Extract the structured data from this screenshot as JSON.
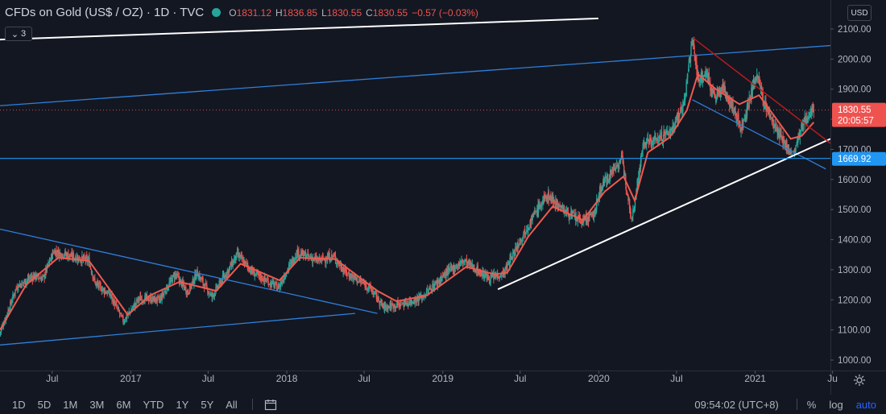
{
  "legend": {
    "title": "CFDs on Gold (US$ / OZ) · 1D · TVC",
    "o_label": "O",
    "o": "1831.12",
    "h_label": "H",
    "h": "1836.85",
    "l_label": "L",
    "l": "1830.55",
    "c_label": "C",
    "c": "1830.55",
    "change": "−0.57 (−0.03%)"
  },
  "collapse": {
    "count": "3"
  },
  "currency": "USD",
  "timeframes": [
    "1D",
    "5D",
    "1M",
    "3M",
    "6M",
    "YTD",
    "1Y",
    "5Y",
    "All"
  ],
  "clock": "09:54:02 (UTC+8)",
  "toggles": {
    "percent": "%",
    "log": "log",
    "auto": "auto"
  },
  "price_badge": {
    "price": "1830.55",
    "countdown": "20:05:57"
  },
  "level_badge": "1669.92",
  "colors": {
    "background": "#131722",
    "up": "#26a69a",
    "down": "#ef5350",
    "ma": "#f05a4f",
    "trendline_blue": "#2f7fd8",
    "trendline_white": "#ffffff",
    "trendline_red": "#b71c1c",
    "level_badge": "#2196f3"
  },
  "chart_data": {
    "type": "candlestick",
    "symbol": "CFDs on Gold (US$ / OZ)",
    "interval": "1D",
    "y_range": [
      960,
      2130
    ],
    "x_start": "2016-03-01",
    "x_end": "2021-06-26",
    "y_ticks": [
      "1000.00",
      "1100.00",
      "1200.00",
      "1300.00",
      "1400.00",
      "1500.00",
      "1600.00",
      "1700.00",
      "1800.00",
      "1900.00",
      "2000.00",
      "2100.00"
    ],
    "x_ticks": [
      {
        "date": "2016-07-01",
        "label": "Jul"
      },
      {
        "date": "2017-01-01",
        "label": "2017"
      },
      {
        "date": "2017-07-01",
        "label": "Jul"
      },
      {
        "date": "2018-01-01",
        "label": "2018"
      },
      {
        "date": "2018-07-01",
        "label": "Jul"
      },
      {
        "date": "2019-01-01",
        "label": "2019"
      },
      {
        "date": "2019-07-01",
        "label": "Jul"
      },
      {
        "date": "2020-01-01",
        "label": "2020"
      },
      {
        "date": "2020-07-01",
        "label": "Jul"
      },
      {
        "date": "2021-01-01",
        "label": "2021"
      },
      {
        "date": "2021-07-01",
        "label": "Ju"
      }
    ],
    "close_path": [
      {
        "date": "2016-03-01",
        "price": 1090
      },
      {
        "date": "2016-04-10",
        "price": 1245
      },
      {
        "date": "2016-05-20",
        "price": 1280
      },
      {
        "date": "2016-06-10",
        "price": 1270
      },
      {
        "date": "2016-07-05",
        "price": 1362
      },
      {
        "date": "2016-08-15",
        "price": 1345
      },
      {
        "date": "2016-09-25",
        "price": 1330
      },
      {
        "date": "2016-10-10",
        "price": 1255
      },
      {
        "date": "2016-11-15",
        "price": 1215
      },
      {
        "date": "2016-12-15",
        "price": 1128
      },
      {
        "date": "2017-01-20",
        "price": 1205
      },
      {
        "date": "2017-03-10",
        "price": 1200
      },
      {
        "date": "2017-04-15",
        "price": 1285
      },
      {
        "date": "2017-05-15",
        "price": 1225
      },
      {
        "date": "2017-06-05",
        "price": 1290
      },
      {
        "date": "2017-07-10",
        "price": 1210
      },
      {
        "date": "2017-09-08",
        "price": 1350
      },
      {
        "date": "2017-10-15",
        "price": 1290
      },
      {
        "date": "2017-12-12",
        "price": 1240
      },
      {
        "date": "2018-01-25",
        "price": 1358
      },
      {
        "date": "2018-03-15",
        "price": 1330
      },
      {
        "date": "2018-04-20",
        "price": 1345
      },
      {
        "date": "2018-05-20",
        "price": 1290
      },
      {
        "date": "2018-07-15",
        "price": 1240
      },
      {
        "date": "2018-08-16",
        "price": 1175
      },
      {
        "date": "2018-10-10",
        "price": 1190
      },
      {
        "date": "2018-11-15",
        "price": 1210
      },
      {
        "date": "2019-01-10",
        "price": 1290
      },
      {
        "date": "2019-02-20",
        "price": 1330
      },
      {
        "date": "2019-04-20",
        "price": 1270
      },
      {
        "date": "2019-05-25",
        "price": 1290
      },
      {
        "date": "2019-07-01",
        "price": 1400
      },
      {
        "date": "2019-08-10",
        "price": 1500
      },
      {
        "date": "2019-09-04",
        "price": 1548
      },
      {
        "date": "2019-10-10",
        "price": 1500
      },
      {
        "date": "2019-11-20",
        "price": 1460
      },
      {
        "date": "2019-12-20",
        "price": 1480
      },
      {
        "date": "2020-01-08",
        "price": 1580
      },
      {
        "date": "2020-02-24",
        "price": 1670
      },
      {
        "date": "2020-03-19",
        "price": 1470
      },
      {
        "date": "2020-04-15",
        "price": 1720
      },
      {
        "date": "2020-05-20",
        "price": 1735
      },
      {
        "date": "2020-06-20",
        "price": 1765
      },
      {
        "date": "2020-07-20",
        "price": 1860
      },
      {
        "date": "2020-08-07",
        "price": 2068
      },
      {
        "date": "2020-08-20",
        "price": 1935
      },
      {
        "date": "2020-09-10",
        "price": 1950
      },
      {
        "date": "2020-09-28",
        "price": 1870
      },
      {
        "date": "2020-10-20",
        "price": 1905
      },
      {
        "date": "2020-11-30",
        "price": 1770
      },
      {
        "date": "2021-01-06",
        "price": 1955
      },
      {
        "date": "2021-01-20",
        "price": 1860
      },
      {
        "date": "2021-02-28",
        "price": 1740
      },
      {
        "date": "2021-03-31",
        "price": 1680
      },
      {
        "date": "2021-04-20",
        "price": 1770
      },
      {
        "date": "2021-05-10",
        "price": 1830
      },
      {
        "date": "2021-05-18",
        "price": 1830.55
      }
    ],
    "moving_average_path": [
      {
        "date": "2016-03-01",
        "price": 1100
      },
      {
        "date": "2016-05-01",
        "price": 1250
      },
      {
        "date": "2016-07-15",
        "price": 1340
      },
      {
        "date": "2016-09-25",
        "price": 1330
      },
      {
        "date": "2016-11-15",
        "price": 1230
      },
      {
        "date": "2016-12-25",
        "price": 1150
      },
      {
        "date": "2017-02-15",
        "price": 1215
      },
      {
        "date": "2017-04-25",
        "price": 1260
      },
      {
        "date": "2017-07-20",
        "price": 1230
      },
      {
        "date": "2017-09-15",
        "price": 1320
      },
      {
        "date": "2017-12-15",
        "price": 1265
      },
      {
        "date": "2018-02-01",
        "price": 1340
      },
      {
        "date": "2018-04-25",
        "price": 1335
      },
      {
        "date": "2018-08-01",
        "price": 1230
      },
      {
        "date": "2018-09-15",
        "price": 1195
      },
      {
        "date": "2018-11-25",
        "price": 1215
      },
      {
        "date": "2019-02-25",
        "price": 1310
      },
      {
        "date": "2019-05-01",
        "price": 1285
      },
      {
        "date": "2019-06-01",
        "price": 1290
      },
      {
        "date": "2019-07-20",
        "price": 1410
      },
      {
        "date": "2019-09-15",
        "price": 1510
      },
      {
        "date": "2019-11-25",
        "price": 1465
      },
      {
        "date": "2020-01-15",
        "price": 1560
      },
      {
        "date": "2020-02-28",
        "price": 1610
      },
      {
        "date": "2020-03-25",
        "price": 1530
      },
      {
        "date": "2020-04-25",
        "price": 1690
      },
      {
        "date": "2020-06-15",
        "price": 1740
      },
      {
        "date": "2020-07-25",
        "price": 1830
      },
      {
        "date": "2020-08-20",
        "price": 1950
      },
      {
        "date": "2020-10-01",
        "price": 1900
      },
      {
        "date": "2020-11-25",
        "price": 1850
      },
      {
        "date": "2021-01-10",
        "price": 1880
      },
      {
        "date": "2021-02-15",
        "price": 1810
      },
      {
        "date": "2021-03-25",
        "price": 1735
      },
      {
        "date": "2021-04-20",
        "price": 1745
      },
      {
        "date": "2021-05-18",
        "price": 1790
      }
    ],
    "drawn_lines": [
      {
        "color": "#2f7fd8",
        "from": {
          "date": "2016-03-01",
          "price": 1435
        },
        "to": {
          "date": "2018-08-01",
          "price": 1155
        }
      },
      {
        "color": "#2f7fd8",
        "from": {
          "date": "2016-03-01",
          "price": 1050
        },
        "to": {
          "date": "2018-06-10",
          "price": 1155
        }
      },
      {
        "color": "#2f7fd8",
        "from": {
          "date": "2016-03-01",
          "price": 1845
        },
        "to": {
          "date": "2021-06-26",
          "price": 2045
        }
      },
      {
        "color": "#2f7fd8",
        "from": {
          "date": "2020-08-07",
          "price": 1865
        },
        "to": {
          "date": "2021-06-15",
          "price": 1635
        }
      },
      {
        "color": "#ffffff",
        "from": {
          "date": "2019-05-10",
          "price": 1235
        },
        "to": {
          "date": "2021-06-26",
          "price": 1735
        }
      },
      {
        "color": "#b71c1c",
        "from": {
          "date": "2020-08-07",
          "price": 2072
        },
        "to": {
          "date": "2021-06-26",
          "price": 1720
        }
      }
    ],
    "white_line_offscreen": {
      "color": "#ffffff",
      "from": {
        "date": "2016-03-01",
        "price": 2065
      },
      "to": {
        "date": "2019-12-31",
        "price": 2135
      }
    },
    "horizontal_level": {
      "price": 1669.92,
      "color": "#2196f3"
    },
    "last_price": 1830.55
  }
}
